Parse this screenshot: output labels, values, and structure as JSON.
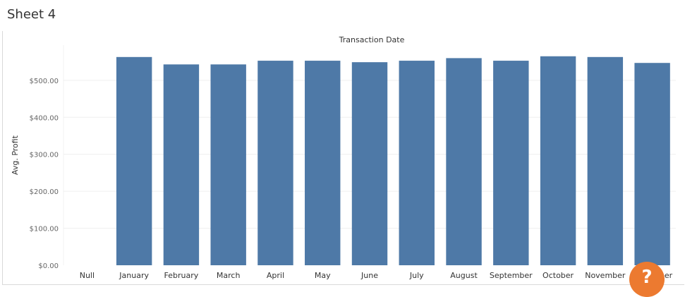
{
  "sheet": {
    "title": "Sheet 4",
    "help_icon": "question-mark-icon",
    "help_label": "?"
  },
  "colors": {
    "bar": "#4e79a7",
    "axis_text": "#666666",
    "title_text": "#333333",
    "gridline": "#efefef",
    "help_button": "#ec7a30"
  },
  "chart_data": {
    "type": "bar",
    "title": "Transaction Date",
    "xlabel": "Transaction Date",
    "ylabel": "Avg. Profit",
    "ylim": [
      0,
      580
    ],
    "yticks": [
      0,
      100,
      200,
      300,
      400,
      500
    ],
    "ytick_labels": [
      "$0.00",
      "$100.00",
      "$200.00",
      "$300.00",
      "$400.00",
      "$500.00"
    ],
    "grid": true,
    "categories": [
      "Null",
      "January",
      "February",
      "March",
      "April",
      "May",
      "June",
      "July",
      "August",
      "September",
      "October",
      "November",
      "December"
    ],
    "values": [
      null,
      563,
      543,
      543,
      553,
      553,
      549,
      553,
      560,
      553,
      565,
      563,
      547
    ]
  }
}
